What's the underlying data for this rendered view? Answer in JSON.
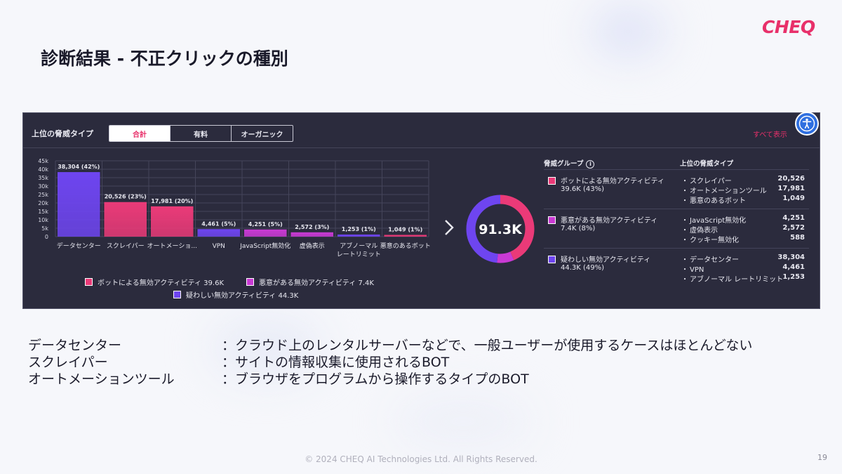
{
  "logo": "CHEQ",
  "page_title": "診断結果 - 不正クリックの種別",
  "panel": {
    "title": "上位の脅威タイプ",
    "tabs": [
      {
        "label": "合計",
        "active": true
      },
      {
        "label": "有料",
        "active": false
      },
      {
        "label": "オーガニック",
        "active": false
      }
    ],
    "show_all": "すべて表示"
  },
  "chart_data": {
    "type": "bar",
    "categories": [
      "データセンター",
      "スクレイパー",
      "オートメーショ...",
      "VPN",
      "JavaScript無効化",
      "虚偽表示",
      "アブノーマル\nレートリミット",
      "悪意のあるボット"
    ],
    "values": [
      38304,
      20526,
      17981,
      4461,
      4251,
      2572,
      1253,
      1049
    ],
    "data_labels": [
      "38,304 (42%)",
      "20,526 (23%)",
      "17,981 (20%)",
      "4,461 (5%)",
      "4,251 (5%)",
      "2,572 (3%)",
      "1,253 (1%)",
      "1,049 (1%)"
    ],
    "bar_colors": [
      "#6e45f0",
      "#ea3a78",
      "#ea3a78",
      "#6e45f0",
      "#c93ad4",
      "#c93ad4",
      "#6e45f0",
      "#ea3a78"
    ],
    "yticks": [
      "0",
      "5k",
      "10k",
      "15k",
      "20k",
      "25k",
      "30k",
      "35k",
      "40k",
      "45k"
    ],
    "ylim": [
      0,
      45000
    ],
    "grid": true,
    "legend_position": "bottom",
    "legend": [
      {
        "label": "ボットによる無効アクティビティ 39.6K",
        "color": "#ea3a78"
      },
      {
        "label": "悪意がある無効アクティビティ 7.4K",
        "color": "#c93ad4"
      },
      {
        "label": "疑わしい無効アクティビティ 44.3K",
        "color": "#6e45f0"
      }
    ]
  },
  "donut": {
    "total_label": "91.3K",
    "segments": [
      {
        "value": 39.6,
        "color": "#ea3a78"
      },
      {
        "value": 7.4,
        "color": "#c93ad4"
      },
      {
        "value": 44.3,
        "color": "#6e45f0"
      }
    ]
  },
  "right_table": {
    "header_group": "脅威グループ",
    "header_threat": "上位の脅威タイプ",
    "groups": [
      {
        "name": "ボットによる無効アクティビティ",
        "value": "39.6K (43%)",
        "color": "#ea3a78",
        "threats": [
          {
            "name": "スクレイパー",
            "value": "20,526"
          },
          {
            "name": "オートメーションツール",
            "value": "17,981"
          },
          {
            "name": "悪意のあるボット",
            "value": "1,049"
          }
        ]
      },
      {
        "name": "悪意がある無効アクティビティ",
        "value": "7.4K (8%)",
        "color": "#c93ad4",
        "threats": [
          {
            "name": "JavaScript無効化",
            "value": "4,251"
          },
          {
            "name": "虚偽表示",
            "value": "2,572"
          },
          {
            "name": "クッキー無効化",
            "value": "588"
          }
        ]
      },
      {
        "name": "疑わしい無効アクティビティ",
        "value": "44.3K (49%)",
        "color": "#6e45f0",
        "threats": [
          {
            "name": "データセンター",
            "value": "38,304"
          },
          {
            "name": "VPN",
            "value": "4,461"
          },
          {
            "name": "アブノーマル レートリミット",
            "value": "1,253"
          }
        ]
      }
    ]
  },
  "definitions": [
    {
      "term": "データセンター",
      "desc": "：クラウド上のレンタルサーバーなどで、一般ユーザーが使用するケースはほとんどない"
    },
    {
      "term": "スクレイパー",
      "desc": "：サイトの情報収集に使用されるBOT"
    },
    {
      "term": "オートメーションツール",
      "desc": "：ブラウザをプログラムから操作するタイプのBOT"
    }
  ],
  "footer": "© 2024 CHEQ AI Technologies Ltd. All Rights Reserved.",
  "page_number": "19"
}
